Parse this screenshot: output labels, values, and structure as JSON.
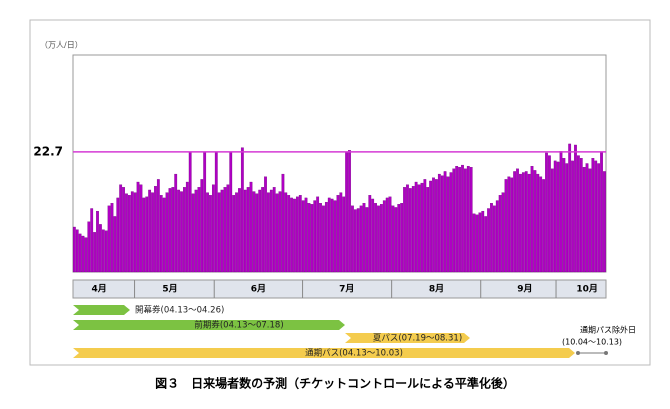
{
  "chart_data": {
    "type": "bar",
    "y_unit": "（万人/日）",
    "color": "#b000c4",
    "ref_color": "#d43ad4",
    "values": [
      8.5,
      8.0,
      7.2,
      6.8,
      6.5,
      9.5,
      12.0,
      7.5,
      11.5,
      9.0,
      8.0,
      7.8,
      12.5,
      13.0,
      10.5,
      14.0,
      16.5,
      16.0,
      14.8,
      14.5,
      15.2,
      15.0,
      17.0,
      16.5,
      14.0,
      14.2,
      15.5,
      15.0,
      16.2,
      17.5,
      14.5,
      14.0,
      15.0,
      15.8,
      16.0,
      18.5,
      15.5,
      15.2,
      16.0,
      17.0,
      22.7,
      14.8,
      15.5,
      16.0,
      17.5,
      22.7,
      15.0,
      14.5,
      16.5,
      22.7,
      15.0,
      15.5,
      16.0,
      16.5,
      22.7,
      14.5,
      15.0,
      15.8,
      23.5,
      15.5,
      16.0,
      17.0,
      15.2,
      14.8,
      15.5,
      16.0,
      18.0,
      15.0,
      15.5,
      16.0,
      14.8,
      15.2,
      18.5,
      15.0,
      14.5,
      14.0,
      13.8,
      14.2,
      14.5,
      13.5,
      14.0,
      13.0,
      12.8,
      13.5,
      14.2,
      13.0,
      12.5,
      13.2,
      14.0,
      13.8,
      13.5,
      14.5,
      15.0,
      14.2,
      22.7,
      23.0,
      12.5,
      11.8,
      12.0,
      12.5,
      13.0,
      12.2,
      14.5,
      13.8,
      13.0,
      12.5,
      12.8,
      13.5,
      14.0,
      14.2,
      12.5,
      12.2,
      12.8,
      13.0,
      16.0,
      16.5,
      15.8,
      16.2,
      17.0,
      16.5,
      16.8,
      17.5,
      16.0,
      17.2,
      17.8,
      17.5,
      18.5,
      18.2,
      19.0,
      18.0,
      18.8,
      19.5,
      20.0,
      19.8,
      20.2,
      19.5,
      20.0,
      19.8,
      11.0,
      10.8,
      11.2,
      11.5,
      10.5,
      12.0,
      13.0,
      12.5,
      13.5,
      14.5,
      15.0,
      17.5,
      18.0,
      17.8,
      19.0,
      19.5,
      18.5,
      18.8,
      19.0,
      18.5,
      20.0,
      19.2,
      18.5,
      18.0,
      17.5,
      22.5,
      22.0,
      19.5,
      21.0,
      20.8,
      22.8,
      21.5,
      20.5,
      24.2,
      21.0,
      24.0,
      22.0,
      21.5,
      19.8,
      20.5,
      19.5,
      21.5,
      21.0,
      20.5,
      22.7,
      19.0
    ],
    "ylim": [
      0,
      41
    ],
    "yticks": [
      22.7
    ],
    "xlim": [
      0,
      184
    ],
    "xticks": [
      {
        "value": 9,
        "label": "4月"
      },
      {
        "value": 33.5,
        "label": "5月"
      },
      {
        "value": 64,
        "label": "6月"
      },
      {
        "value": 94.5,
        "label": "7月"
      },
      {
        "value": 125.5,
        "label": "8月"
      },
      {
        "value": 156,
        "label": "9月"
      },
      {
        "value": 177.5,
        "label": "10月"
      }
    ]
  },
  "passes": [
    {
      "label": "開幕券(04.13～04.26)",
      "color": "#7cc242"
    },
    {
      "label": "前期券(04.13～07.18)",
      "color": "#7cc242"
    },
    {
      "label": "夏パス(07.19～08.31)",
      "color": "#f4cc4e"
    },
    {
      "label": "通期パス(04.13～10.03)",
      "color": "#f4cc4e"
    }
  ],
  "exclusion": {
    "line1": "通期パス除外日",
    "line2": "(10.04～10.13)"
  },
  "caption": "図３　日来場者数の予測（チケットコントロールによる平準化後）"
}
